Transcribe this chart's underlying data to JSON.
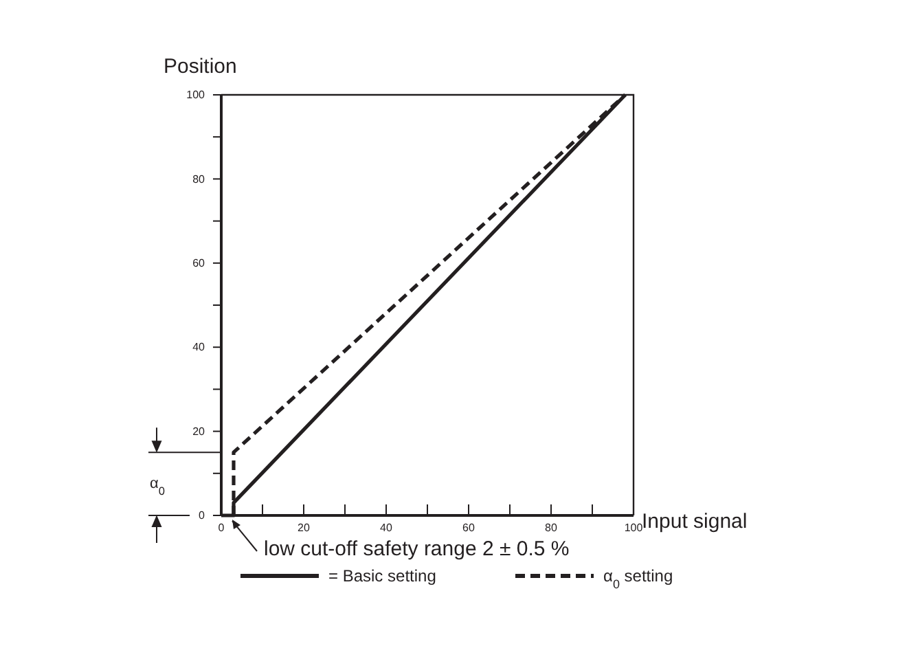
{
  "chart_data": {
    "type": "line",
    "xlabel": "Input signal",
    "ylabel": "Position",
    "xlim": [
      0,
      100
    ],
    "ylim": [
      0,
      100
    ],
    "xticks": [
      0,
      {
        "value": 10,
        "label": null
      },
      20,
      {
        "value": 30,
        "label": null
      },
      40,
      {
        "value": 50,
        "label": null
      },
      60,
      {
        "value": 70,
        "label": null
      },
      80,
      {
        "value": 90,
        "label": null
      },
      100
    ],
    "yticks": [
      0,
      {
        "value": 10,
        "label": null
      },
      20,
      {
        "value": 30,
        "label": null
      },
      40,
      {
        "value": 50,
        "label": null
      },
      60,
      {
        "value": 70,
        "label": null
      },
      80,
      {
        "value": 90,
        "label": null
      },
      100
    ],
    "series": [
      {
        "name": "= Basic setting",
        "color": "#231f20",
        "line_style": "solid",
        "x": [
          0,
          3,
          3,
          98
        ],
        "values": [
          0,
          0,
          3,
          100
        ]
      },
      {
        "name": "α$_{0}$ setting",
        "color": "#231f20",
        "line_style": "dashed",
        "x": [
          3,
          3,
          98
        ],
        "values": [
          0,
          15,
          100
        ]
      }
    ],
    "ref_lines": [
      {
        "axis": "y",
        "value": 15,
        "label": "α$_{0}$"
      }
    ],
    "annotations": [
      {
        "text": "low cut-off safety range 2 ± 0.5 %",
        "x": 2,
        "y": 0
      }
    ],
    "legend": "bottom",
    "grid": false,
    "marker": "none"
  }
}
